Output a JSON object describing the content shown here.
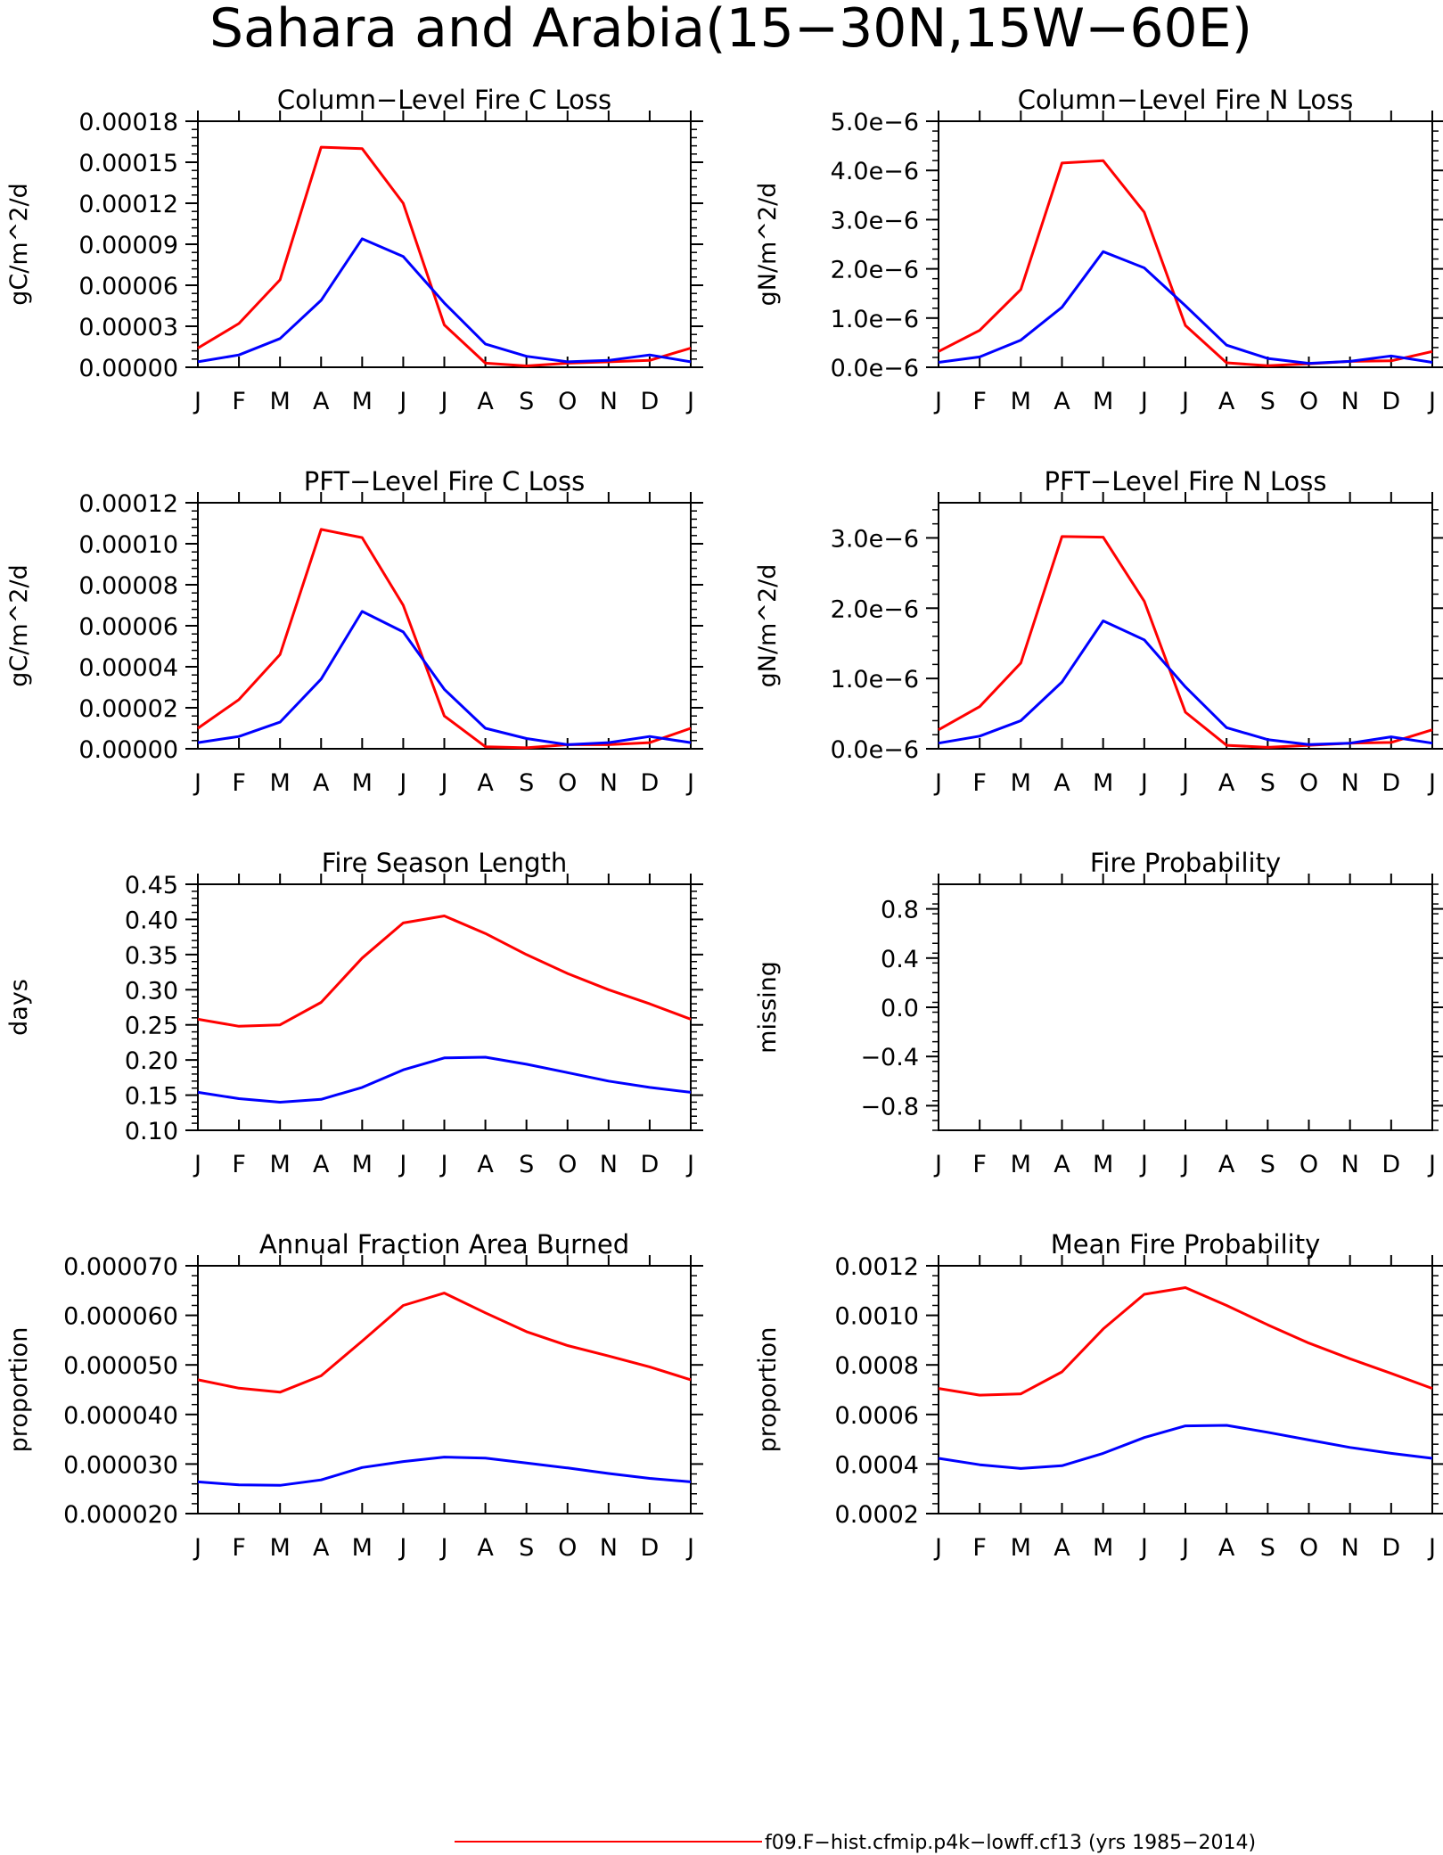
{
  "page_title": "Sahara and Arabia(15−30N,15W−60E)",
  "colors": {
    "red": "#ff0000",
    "blue": "#0000ff"
  },
  "legend": [
    {
      "color": "#ff0000",
      "label": "f09.F−hist.cfmip.p4k−lowff.cf13 (yrs 1985−2014)"
    }
  ],
  "chart_data": [
    {
      "type": "line",
      "title": "Column−Level Fire C Loss",
      "ylabel": "gC/m^2/d",
      "categories": [
        "J",
        "F",
        "M",
        "A",
        "M",
        "J",
        "J",
        "A",
        "S",
        "O",
        "N",
        "D",
        "J"
      ],
      "ylim": [
        0,
        0.00018
      ],
      "yticks": [
        "0.00000",
        "0.00003",
        "0.00006",
        "0.00009",
        "0.00012",
        "0.00015",
        "0.00018"
      ],
      "series": [
        {
          "color": "#ff0000",
          "values": [
            1.4e-05,
            3.2e-05,
            6.4e-05,
            0.000161,
            0.00016,
            0.00012,
            3.1e-05,
            3e-06,
            1e-06,
            3e-06,
            4e-06,
            5e-06,
            1.4e-05
          ]
        },
        {
          "color": "#0000ff",
          "values": [
            4e-06,
            9e-06,
            2.1e-05,
            4.9e-05,
            9.4e-05,
            8.1e-05,
            4.7e-05,
            1.7e-05,
            8e-06,
            4e-06,
            5e-06,
            9e-06,
            4e-06
          ]
        }
      ]
    },
    {
      "type": "line",
      "title": "Column−Level Fire N Loss",
      "ylabel": "gN/m^2/d",
      "categories": [
        "J",
        "F",
        "M",
        "A",
        "M",
        "J",
        "J",
        "A",
        "S",
        "O",
        "N",
        "D",
        "J"
      ],
      "ylim": [
        0,
        5e-06
      ],
      "yticks": [
        "0.0e−6",
        "1.0e−6",
        "2.0e−6",
        "3.0e−6",
        "4.0e−6",
        "5.0e−6"
      ],
      "series": [
        {
          "color": "#ff0000",
          "values": [
            3.2e-07,
            7.5e-07,
            1.58e-06,
            4.15e-06,
            4.2e-06,
            3.15e-06,
            8.5e-07,
            9e-08,
            3e-08,
            7e-08,
            1.2e-07,
            1.3e-07,
            3.2e-07
          ]
        },
        {
          "color": "#0000ff",
          "values": [
            1e-07,
            2.1e-07,
            5.5e-07,
            1.22e-06,
            2.35e-06,
            2.02e-06,
            1.25e-06,
            4.5e-07,
            1.8e-07,
            8e-08,
            1.2e-07,
            2.3e-07,
            1e-07
          ]
        }
      ]
    },
    {
      "type": "line",
      "title": "PFT−Level Fire C Loss",
      "ylabel": "gC/m^2/d",
      "categories": [
        "J",
        "F",
        "M",
        "A",
        "M",
        "J",
        "J",
        "A",
        "S",
        "O",
        "N",
        "D",
        "J"
      ],
      "ylim": [
        0,
        0.00012
      ],
      "yticks": [
        "0.00000",
        "0.00002",
        "0.00004",
        "0.00006",
        "0.00008",
        "0.00010",
        "0.00012"
      ],
      "series": [
        {
          "color": "#ff0000",
          "values": [
            1e-05,
            2.4e-05,
            4.6e-05,
            0.000107,
            0.000103,
            7e-05,
            1.6e-05,
            1e-06,
            5e-07,
            2e-06,
            2e-06,
            3e-06,
            1e-05
          ]
        },
        {
          "color": "#0000ff",
          "values": [
            3e-06,
            6e-06,
            1.3e-05,
            3.4e-05,
            6.7e-05,
            5.7e-05,
            2.9e-05,
            1e-05,
            5e-06,
            2e-06,
            3e-06,
            6e-06,
            3e-06
          ]
        }
      ]
    },
    {
      "type": "line",
      "title": "PFT−Level Fire N Loss",
      "ylabel": "gN/m^2/d",
      "categories": [
        "J",
        "F",
        "M",
        "A",
        "M",
        "J",
        "J",
        "A",
        "S",
        "O",
        "N",
        "D",
        "J"
      ],
      "ylim": [
        0,
        3.5e-06
      ],
      "yticks": [
        "0.0e−6",
        "1.0e−6",
        "2.0e−6",
        "3.0e−6"
      ],
      "series": [
        {
          "color": "#ff0000",
          "values": [
            2.7e-07,
            6e-07,
            1.22e-06,
            3.02e-06,
            3.01e-06,
            2.1e-06,
            5.2e-07,
            5e-08,
            2e-08,
            5e-08,
            8e-08,
            9e-08,
            2.7e-07
          ]
        },
        {
          "color": "#0000ff",
          "values": [
            8e-08,
            1.8e-07,
            4e-07,
            9.5e-07,
            1.82e-06,
            1.55e-06,
            8.8e-07,
            3e-07,
            1.3e-07,
            6e-08,
            8e-08,
            1.7e-07,
            8e-08
          ]
        }
      ]
    },
    {
      "type": "line",
      "title": "Fire Season Length",
      "ylabel": "days",
      "categories": [
        "J",
        "F",
        "M",
        "A",
        "M",
        "J",
        "J",
        "A",
        "S",
        "O",
        "N",
        "D",
        "J"
      ],
      "ylim": [
        0.1,
        0.45
      ],
      "yticks": [
        "0.10",
        "0.15",
        "0.20",
        "0.25",
        "0.30",
        "0.35",
        "0.40",
        "0.45"
      ],
      "series": [
        {
          "color": "#ff0000",
          "values": [
            0.258,
            0.248,
            0.25,
            0.282,
            0.345,
            0.395,
            0.405,
            0.38,
            0.35,
            0.323,
            0.3,
            0.28,
            0.258
          ]
        },
        {
          "color": "#0000ff",
          "values": [
            0.154,
            0.145,
            0.14,
            0.144,
            0.161,
            0.186,
            0.203,
            0.204,
            0.194,
            0.182,
            0.17,
            0.161,
            0.154
          ]
        }
      ]
    },
    {
      "type": "line",
      "title": "Fire Probability",
      "ylabel": "missing",
      "categories": [
        "J",
        "F",
        "M",
        "A",
        "M",
        "J",
        "J",
        "A",
        "S",
        "O",
        "N",
        "D",
        "J"
      ],
      "ylim": [
        -1.0,
        1.0
      ],
      "yticks": [
        "−0.8",
        "−0.4",
        "0.0",
        "0.4",
        "0.8"
      ],
      "series": []
    },
    {
      "type": "line",
      "title": "Annual Fraction Area Burned",
      "ylabel": "proportion",
      "categories": [
        "J",
        "F",
        "M",
        "A",
        "M",
        "J",
        "J",
        "A",
        "S",
        "O",
        "N",
        "D",
        "J"
      ],
      "ylim": [
        2e-05,
        7e-05
      ],
      "yticks": [
        "0.000020",
        "0.000030",
        "0.000040",
        "0.000050",
        "0.000060",
        "0.000070"
      ],
      "series": [
        {
          "color": "#ff0000",
          "values": [
            4.7e-05,
            4.53e-05,
            4.45e-05,
            4.78e-05,
            5.48e-05,
            6.2e-05,
            6.45e-05,
            6.05e-05,
            5.67e-05,
            5.39e-05,
            5.18e-05,
            4.96e-05,
            4.7e-05
          ]
        },
        {
          "color": "#0000ff",
          "values": [
            2.64e-05,
            2.58e-05,
            2.57e-05,
            2.68e-05,
            2.93e-05,
            3.05e-05,
            3.14e-05,
            3.12e-05,
            3.02e-05,
            2.92e-05,
            2.81e-05,
            2.71e-05,
            2.64e-05
          ]
        }
      ]
    },
    {
      "type": "line",
      "title": "Mean Fire Probability",
      "ylabel": "proportion",
      "categories": [
        "J",
        "F",
        "M",
        "A",
        "M",
        "J",
        "J",
        "A",
        "S",
        "O",
        "N",
        "D",
        "J"
      ],
      "ylim": [
        0.0002,
        0.0012
      ],
      "yticks": [
        "0.0002",
        "0.0004",
        "0.0006",
        "0.0008",
        "0.0010",
        "0.0012"
      ],
      "series": [
        {
          "color": "#ff0000",
          "values": [
            0.000705,
            0.000678,
            0.000683,
            0.000772,
            0.000945,
            0.001085,
            0.001112,
            0.00104,
            0.000962,
            0.000888,
            0.000825,
            0.000766,
            0.000705
          ]
        },
        {
          "color": "#0000ff",
          "values": [
            0.000423,
            0.000397,
            0.000382,
            0.000393,
            0.000443,
            0.000507,
            0.000554,
            0.000556,
            0.000528,
            0.000497,
            0.000467,
            0.000443,
            0.000423
          ]
        }
      ]
    }
  ]
}
